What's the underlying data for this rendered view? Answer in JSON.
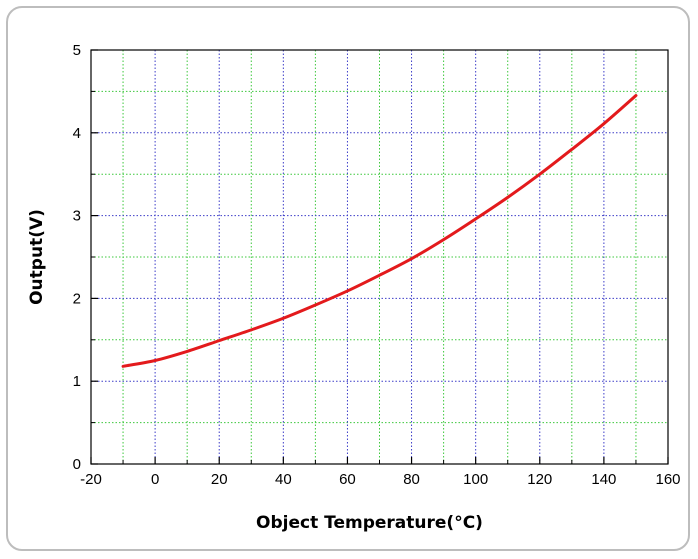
{
  "chart_data": {
    "type": "line",
    "xlabel": "Object Temperature(°C)",
    "ylabel": "Output(V)",
    "xlim": [
      -20,
      160
    ],
    "ylim": [
      0,
      5
    ],
    "xticks": [
      -20,
      0,
      20,
      40,
      60,
      80,
      100,
      120,
      140,
      160
    ],
    "yticks": [
      0,
      1,
      2,
      3,
      4,
      5
    ],
    "grid": true,
    "line_color": "#e31a1c",
    "major_grid_color": "#3c3cc8",
    "minor_grid_color": "#3cc83c",
    "series": [
      {
        "x": [
          -10,
          0,
          10,
          20,
          30,
          40,
          50,
          60,
          70,
          80,
          90,
          100,
          110,
          120,
          130,
          140,
          150
        ],
        "y": [
          1.18,
          1.25,
          1.36,
          1.49,
          1.62,
          1.76,
          1.92,
          2.09,
          2.28,
          2.48,
          2.71,
          2.96,
          3.22,
          3.5,
          3.8,
          4.11,
          4.45
        ]
      }
    ]
  }
}
